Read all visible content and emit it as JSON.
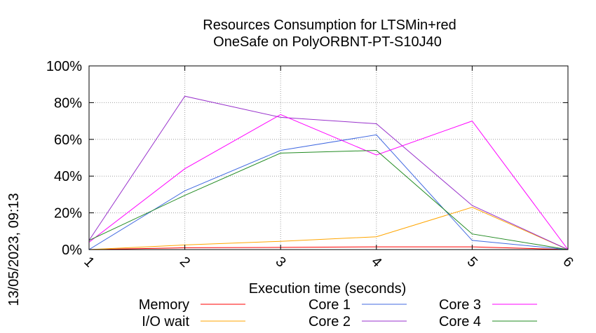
{
  "chart_data": {
    "type": "line",
    "title": "Resources Consumption for LTSMin+red",
    "subtitle": "OneSafe on PolyORBNT-PT-S10J40",
    "xlabel": "Execution time (seconds)",
    "ylabel": "",
    "side_label": "13/05/2023, 09:13",
    "x": [
      1,
      2,
      3,
      4,
      5,
      6
    ],
    "xlim": [
      1,
      6
    ],
    "ylim": [
      0,
      100
    ],
    "x_ticks": [
      "1",
      "2",
      "3",
      "4",
      "5",
      "6"
    ],
    "y_ticks": [
      {
        "value": 0,
        "label": "0%"
      },
      {
        "value": 20,
        "label": "20%"
      },
      {
        "value": 40,
        "label": "40%"
      },
      {
        "value": 60,
        "label": "60%"
      },
      {
        "value": 80,
        "label": "80%"
      },
      {
        "value": 100,
        "label": "100%"
      }
    ],
    "grid": true,
    "legend_position": "bottom",
    "series": [
      {
        "name": "Memory",
        "color": "#ff0000",
        "values": [
          0,
          1,
          1.2,
          1.5,
          1.5,
          0
        ]
      },
      {
        "name": "I/O wait",
        "color": "#ffa500",
        "values": [
          0,
          2.5,
          4.5,
          7,
          23,
          0
        ]
      },
      {
        "name": "Core 1",
        "color": "#4169e1",
        "values": [
          0,
          32,
          54,
          62.5,
          5,
          0
        ]
      },
      {
        "name": "Core 2",
        "color": "#9932cc",
        "values": [
          5,
          83.5,
          72,
          68.5,
          24,
          0
        ]
      },
      {
        "name": "Core 3",
        "color": "#ff00ff",
        "values": [
          4,
          44,
          73.5,
          51.5,
          70,
          0
        ]
      },
      {
        "name": "Core 4",
        "color": "#228b22",
        "values": [
          5,
          29.5,
          52.5,
          54,
          8.5,
          0
        ]
      }
    ]
  }
}
